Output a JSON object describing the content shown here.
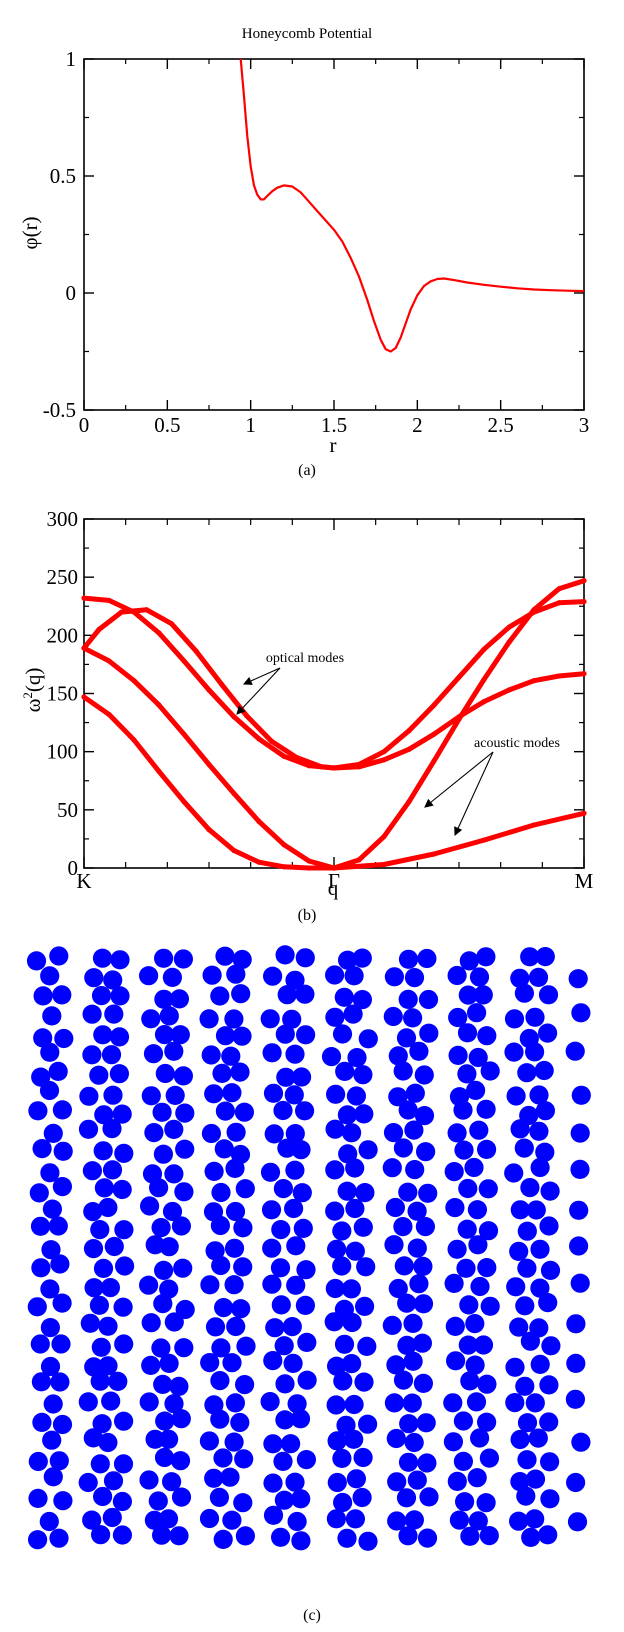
{
  "figure": {
    "caption_a": "(a)",
    "caption_b": "(b)",
    "caption_c": "(c)"
  },
  "chart_data": [
    {
      "type": "line",
      "title": "Honeycomb Potential",
      "xlabel": "r",
      "ylabel": "φ(r)",
      "xlim": [
        0,
        3
      ],
      "ylim": [
        -0.5,
        1
      ],
      "x_ticks": [
        "0",
        "0.5",
        "1",
        "1.5",
        "2",
        "2.5",
        "3"
      ],
      "y_ticks": [
        "-0.5",
        "0",
        "0.5",
        "1"
      ],
      "grid": false,
      "color": "#ff0000",
      "series": [
        {
          "x": [
            0.94,
            0.96,
            0.98,
            1.0,
            1.02,
            1.04,
            1.06,
            1.08,
            1.1,
            1.13,
            1.16,
            1.2,
            1.25,
            1.3,
            1.35,
            1.4,
            1.45,
            1.5,
            1.55,
            1.6,
            1.65,
            1.7,
            1.74,
            1.78,
            1.81,
            1.84,
            1.87,
            1.9,
            1.93,
            1.96,
            2.0,
            2.04,
            2.08,
            2.12,
            2.16,
            2.22,
            2.3,
            2.4,
            2.5,
            2.6,
            2.7,
            2.8,
            2.9,
            3.0
          ],
          "y": [
            1.0,
            0.84,
            0.67,
            0.54,
            0.46,
            0.42,
            0.4,
            0.4,
            0.415,
            0.435,
            0.45,
            0.46,
            0.455,
            0.43,
            0.39,
            0.35,
            0.31,
            0.27,
            0.22,
            0.15,
            0.07,
            -0.03,
            -0.12,
            -0.2,
            -0.24,
            -0.25,
            -0.235,
            -0.19,
            -0.13,
            -0.07,
            -0.01,
            0.03,
            0.05,
            0.06,
            0.062,
            0.055,
            0.045,
            0.035,
            0.027,
            0.02,
            0.015,
            0.012,
            0.01,
            0.008
          ]
        }
      ]
    },
    {
      "type": "scatter",
      "xlabel": "q",
      "ylabel": "ω²(q)",
      "ylim": [
        0,
        300
      ],
      "x_ticks": [
        "K",
        "Γ",
        "M"
      ],
      "y_ticks": [
        "0",
        "50",
        "100",
        "150",
        "200",
        "250",
        "300"
      ],
      "grid": false,
      "color": "#ff0000",
      "annotations": [
        "optical modes",
        "acoustic modes"
      ],
      "series": [
        {
          "x": [
            0,
            0.1,
            0.2,
            0.3,
            0.4,
            0.5,
            0.6,
            0.7,
            0.8,
            0.9,
            1.0
          ],
          "y": [
            147,
            132,
            110,
            83,
            57,
            33,
            15,
            5,
            1,
            0,
            0
          ]
        },
        {
          "x": [
            1.0,
            1.2,
            1.4,
            1.6,
            1.8,
            2.0
          ],
          "y": [
            0,
            3,
            12,
            24,
            37,
            47
          ]
        },
        {
          "x": [
            0,
            0.1,
            0.2,
            0.3,
            0.4,
            0.5,
            0.6,
            0.7,
            0.8,
            0.9,
            1.0
          ],
          "y": [
            189,
            178,
            161,
            140,
            115,
            89,
            64,
            40,
            20,
            6,
            0
          ]
        },
        {
          "x": [
            1.0,
            1.1,
            1.2,
            1.3,
            1.4,
            1.5,
            1.6,
            1.7,
            1.8,
            1.9,
            2.0
          ],
          "y": [
            0,
            7,
            27,
            57,
            92,
            128,
            162,
            194,
            222,
            240,
            247
          ]
        },
        {
          "x": [
            0,
            0.06,
            0.15,
            0.25,
            0.35,
            0.45,
            0.55,
            0.65,
            0.75,
            0.85,
            0.95,
            1.0
          ],
          "y": [
            189,
            205,
            220,
            222,
            210,
            186,
            158,
            131,
            109,
            95,
            87,
            86
          ]
        },
        {
          "x": [
            0,
            0.1,
            0.2,
            0.3,
            0.4,
            0.5,
            0.6,
            0.7,
            0.8,
            0.9,
            1.0
          ],
          "y": [
            232,
            230,
            220,
            202,
            178,
            153,
            130,
            111,
            96,
            88,
            86
          ]
        },
        {
          "x": [
            1.0,
            1.1,
            1.2,
            1.3,
            1.4,
            1.5,
            1.6,
            1.7,
            1.8,
            1.9,
            2.0
          ],
          "y": [
            86,
            87,
            93,
            102,
            115,
            130,
            143,
            153,
            161,
            165,
            167
          ]
        },
        {
          "x": [
            1.0,
            1.1,
            1.2,
            1.3,
            1.4,
            1.5,
            1.6,
            1.7,
            1.8,
            1.9,
            2.0
          ],
          "y": [
            86,
            89,
            100,
            118,
            140,
            164,
            188,
            207,
            220,
            228,
            229
          ]
        }
      ]
    }
  ],
  "particles": {
    "color": "#0000ff",
    "columns": 27,
    "rows": 31,
    "count_shown": "approx. 400 disks (honeycomb configuration)"
  }
}
